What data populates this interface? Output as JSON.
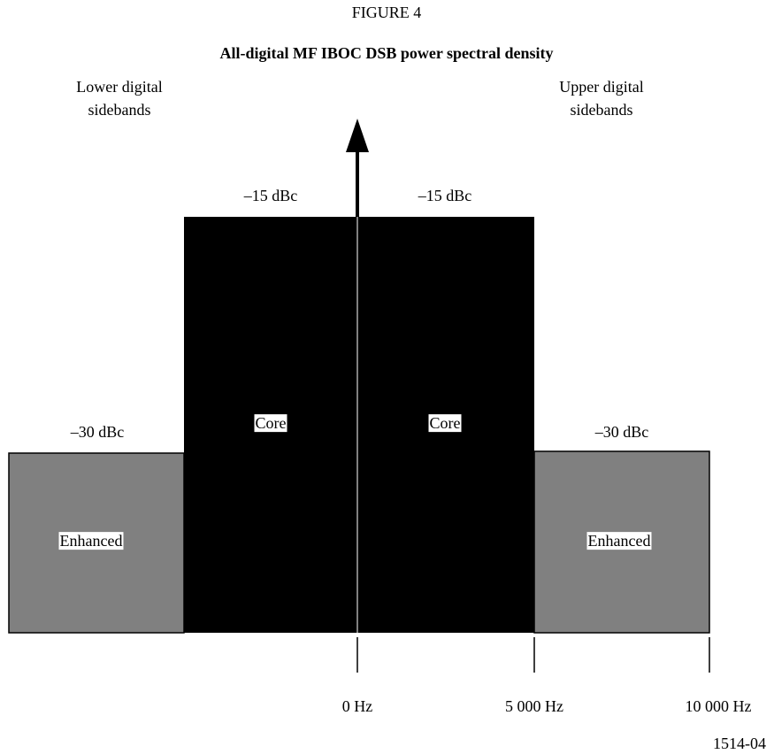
{
  "figure_label": "FIGURE 4",
  "title": "All-digital MF IBOC DSB power spectral density",
  "lower_sidebands": {
    "line1": "Lower digital",
    "line2": "sidebands"
  },
  "upper_sidebands": {
    "line1": "Upper digital",
    "line2": "sidebands"
  },
  "core_level_left": "–15 dBc",
  "core_level_right": "–15 dBc",
  "enhanced_level_left": "–30 dBc",
  "enhanced_level_right": "–30 dBc",
  "core_left": "Core",
  "core_right": "Core",
  "enhanced_left": "Enhanced",
  "enhanced_right": "Enhanced",
  "frequency_ticks": [
    "0 Hz",
    "5 000 Hz",
    "10 000 Hz"
  ],
  "figure_id": "1514-04"
}
